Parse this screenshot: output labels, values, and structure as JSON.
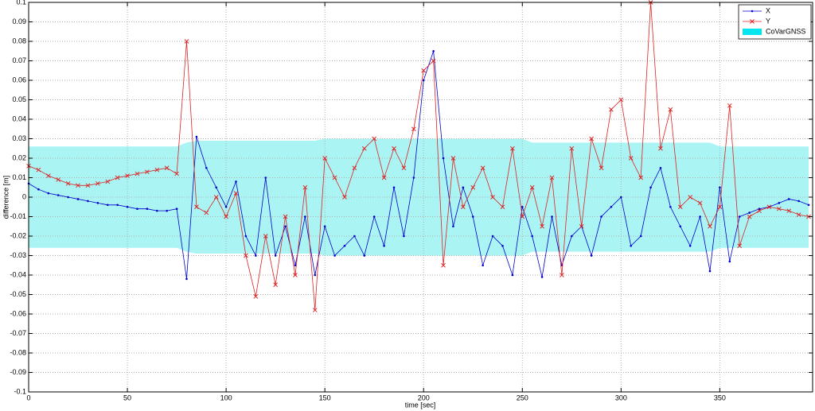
{
  "chart_data": {
    "type": "line",
    "xlabel": "time [sec]",
    "ylabel": "difference [m]",
    "x": [
      0,
      5,
      10,
      15,
      20,
      25,
      30,
      35,
      40,
      45,
      50,
      55,
      60,
      65,
      70,
      75,
      80,
      85,
      90,
      95,
      100,
      105,
      110,
      115,
      120,
      125,
      130,
      135,
      140,
      145,
      150,
      155,
      160,
      165,
      170,
      175,
      180,
      185,
      190,
      195,
      200,
      205,
      210,
      215,
      220,
      225,
      230,
      235,
      240,
      245,
      250,
      255,
      260,
      265,
      270,
      275,
      280,
      285,
      290,
      295,
      300,
      305,
      310,
      315,
      320,
      325,
      330,
      335,
      340,
      345,
      350,
      355,
      360,
      365,
      370,
      375,
      380,
      385,
      390,
      395
    ],
    "series": [
      {
        "name": "X",
        "color": "#0000cc",
        "marker": "dot",
        "values": [
          0.007,
          0.004,
          0.002,
          0.001,
          0,
          -0.001,
          -0.002,
          -0.003,
          -0.004,
          -0.004,
          -0.005,
          -0.006,
          -0.006,
          -0.007,
          -0.007,
          -0.006,
          -0.042,
          0.031,
          0.015,
          0.005,
          -0.005,
          0.008,
          -0.02,
          -0.03,
          0.01,
          -0.03,
          -0.015,
          -0.035,
          -0.01,
          -0.04,
          -0.015,
          -0.03,
          -0.025,
          -0.02,
          -0.03,
          -0.01,
          -0.025,
          0.005,
          -0.02,
          0.01,
          0.06,
          0.075,
          0.02,
          -0.015,
          0.005,
          -0.01,
          -0.035,
          -0.02,
          -0.025,
          -0.04,
          -0.005,
          -0.02,
          -0.041,
          -0.01,
          -0.035,
          -0.02,
          -0.015,
          -0.03,
          -0.01,
          -0.005,
          0,
          -0.025,
          -0.02,
          0.005,
          0.015,
          -0.005,
          -0.015,
          -0.025,
          -0.01,
          -0.038,
          0.005,
          -0.033,
          -0.01,
          -0.008,
          -0.006,
          -0.005,
          -0.003,
          -0.001,
          -0.002,
          -0.004
        ]
      },
      {
        "name": "Y",
        "color": "#dd2222",
        "marker": "x",
        "values": [
          0.016,
          0.014,
          0.011,
          0.009,
          0.007,
          0.006,
          0.006,
          0.007,
          0.008,
          0.01,
          0.011,
          0.012,
          0.013,
          0.014,
          0.015,
          0.012,
          0.08,
          -0.005,
          -0.008,
          0,
          -0.01,
          0.002,
          -0.03,
          -0.051,
          -0.02,
          -0.045,
          -0.01,
          -0.04,
          0.005,
          -0.058,
          0.02,
          0.01,
          0,
          0.015,
          0.025,
          0.03,
          0.01,
          0.025,
          0.015,
          0.035,
          0.065,
          0.07,
          -0.035,
          0.02,
          -0.005,
          0.005,
          0.015,
          0,
          -0.005,
          0.025,
          -0.01,
          0.005,
          -0.015,
          0.01,
          -0.04,
          0.025,
          -0.015,
          0.03,
          0.015,
          0.045,
          0.05,
          0.02,
          0.01,
          0.1,
          0.025,
          0.045,
          -0.005,
          0,
          -0.003,
          -0.015,
          -0.005,
          0.047,
          -0.025,
          -0.01,
          -0.007,
          -0.005,
          -0.006,
          -0.007,
          -0.009,
          -0.01
        ]
      },
      {
        "name": "CoVarGNSS",
        "color": "#aaf4f4",
        "legend_color": "#00e5ee",
        "upper": [
          0.026,
          0.026,
          0.026,
          0.026,
          0.026,
          0.026,
          0.026,
          0.026,
          0.026,
          0.026,
          0.026,
          0.026,
          0.026,
          0.026,
          0.026,
          0.026,
          0.028,
          0.029,
          0.029,
          0.029,
          0.029,
          0.029,
          0.029,
          0.029,
          0.029,
          0.029,
          0.029,
          0.029,
          0.029,
          0.029,
          0.03,
          0.03,
          0.03,
          0.03,
          0.03,
          0.03,
          0.03,
          0.03,
          0.03,
          0.03,
          0.03,
          0.03,
          0.03,
          0.03,
          0.03,
          0.03,
          0.03,
          0.03,
          0.03,
          0.03,
          0.03,
          0.028,
          0.028,
          0.028,
          0.028,
          0.028,
          0.028,
          0.028,
          0.028,
          0.028,
          0.028,
          0.028,
          0.028,
          0.028,
          0.028,
          0.028,
          0.028,
          0.028,
          0.028,
          0.028,
          0.026,
          0.026,
          0.026,
          0.026,
          0.026,
          0.026,
          0.026,
          0.026,
          0.026,
          0.026
        ],
        "lower": [
          -0.026,
          -0.026,
          -0.026,
          -0.026,
          -0.026,
          -0.026,
          -0.026,
          -0.026,
          -0.026,
          -0.026,
          -0.026,
          -0.026,
          -0.026,
          -0.026,
          -0.026,
          -0.026,
          -0.028,
          -0.029,
          -0.029,
          -0.029,
          -0.029,
          -0.029,
          -0.029,
          -0.029,
          -0.029,
          -0.029,
          -0.029,
          -0.029,
          -0.029,
          -0.029,
          -0.03,
          -0.03,
          -0.03,
          -0.03,
          -0.03,
          -0.03,
          -0.03,
          -0.03,
          -0.03,
          -0.03,
          -0.03,
          -0.03,
          -0.03,
          -0.03,
          -0.03,
          -0.03,
          -0.03,
          -0.03,
          -0.03,
          -0.03,
          -0.03,
          -0.028,
          -0.028,
          -0.028,
          -0.028,
          -0.028,
          -0.028,
          -0.028,
          -0.028,
          -0.028,
          -0.028,
          -0.028,
          -0.028,
          -0.028,
          -0.028,
          -0.028,
          -0.028,
          -0.028,
          -0.028,
          -0.028,
          -0.026,
          -0.026,
          -0.026,
          -0.026,
          -0.026,
          -0.026,
          -0.026,
          -0.026,
          -0.026,
          -0.026
        ]
      }
    ],
    "xlim": [
      0,
      397
    ],
    "ylim": [
      -0.1,
      0.1
    ],
    "xticks": [
      0,
      50,
      100,
      150,
      200,
      250,
      300,
      350
    ],
    "yticks": [
      -0.1,
      -0.09,
      -0.08,
      -0.07,
      -0.06,
      -0.05,
      -0.04,
      -0.03,
      -0.02,
      -0.01,
      0,
      0.01,
      0.02,
      0.03,
      0.04,
      0.05,
      0.06,
      0.07,
      0.08,
      0.09,
      0.1
    ],
    "grid": true,
    "legend": "top-right"
  }
}
